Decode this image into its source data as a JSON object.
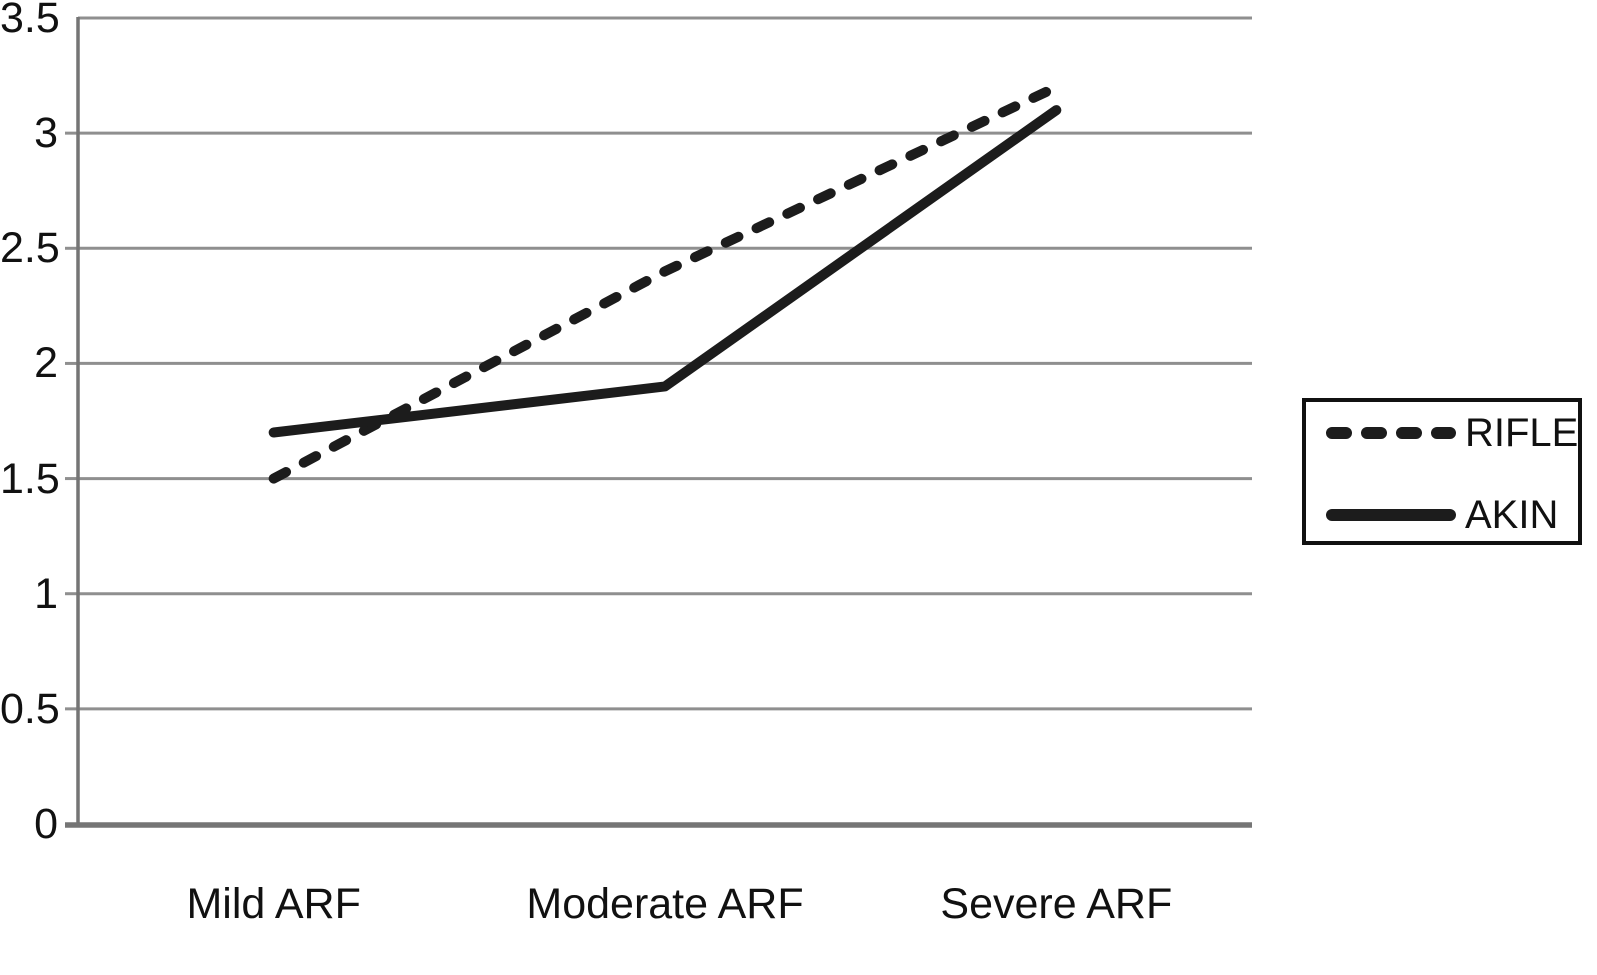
{
  "chart_data": {
    "type": "line",
    "title": "",
    "xlabel": "",
    "ylabel": "",
    "categories": [
      "Mild ARF",
      "Moderate ARF",
      "Severe ARF"
    ],
    "series": [
      {
        "name": "RIFLE",
        "line_style": "dashed",
        "values": [
          1.5,
          2.4,
          3.2
        ]
      },
      {
        "name": "AKIN",
        "line_style": "solid",
        "values": [
          1.7,
          1.9,
          3.1
        ]
      }
    ],
    "ylim": [
      0,
      3.5
    ],
    "yticks": [
      0,
      0.5,
      1,
      1.5,
      2,
      2.5,
      3,
      3.5
    ],
    "ytick_labels": [
      "0",
      "0.5",
      "1",
      "1.5",
      "2",
      "2.5",
      "3",
      "3.5"
    ],
    "grid": "horizontal",
    "legend_position": "right",
    "colors": {
      "line": "#1c1c1c",
      "gridline": "#8f8f8f",
      "axis": "#757575",
      "text": "#111111",
      "background": "#ffffff"
    }
  }
}
